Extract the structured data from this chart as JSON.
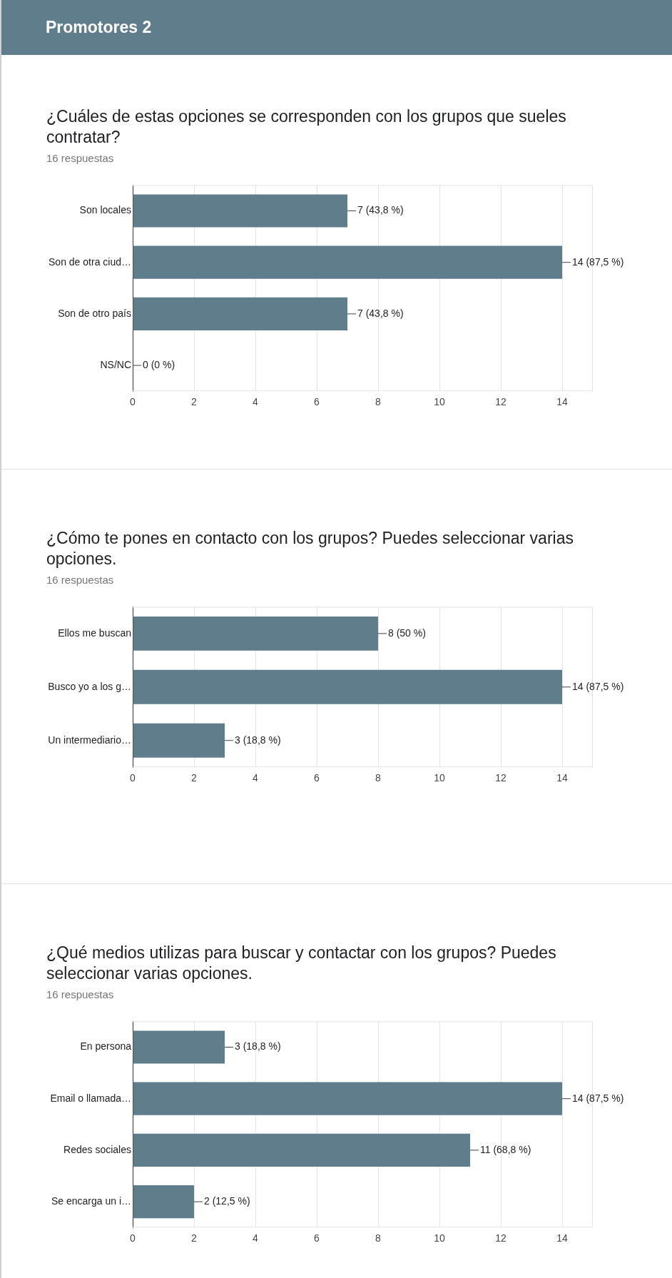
{
  "chart_data": [
    {
      "type": "bar",
      "orientation": "horizontal",
      "annotations": [
        "Promotores 2"
      ],
      "title": "¿Cuáles de estas opciones se corresponden con los grupos que sueles contratar?",
      "subtitle": "16 respuestas",
      "categories": [
        "Son locales",
        "Son de otra ciud…",
        "Son de otro país",
        "NS/NC"
      ],
      "values": [
        7,
        14,
        7,
        0
      ],
      "value_labels": [
        "7 (43,8 %)",
        "14 (87,5 %)",
        "7 (43,8 %)",
        "0 (0 %)"
      ],
      "color": "#607d8b",
      "xlim": [
        0,
        15
      ],
      "xticks": [
        0,
        2,
        4,
        6,
        8,
        10,
        12,
        14
      ],
      "grid": "x",
      "legend": false
    },
    {
      "type": "bar",
      "orientation": "horizontal",
      "title": "¿Cómo te pones en contacto con los grupos? Puedes seleccionar varias opciones.",
      "subtitle": "16 respuestas",
      "categories": [
        "Ellos me buscan",
        "Busco yo a los g…",
        "Un intermediario…"
      ],
      "values": [
        8,
        14,
        3
      ],
      "value_labels": [
        "8 (50 %)",
        "14 (87,5 %)",
        "3 (18,8 %)"
      ],
      "color": "#607d8b",
      "xlim": [
        0,
        15
      ],
      "xticks": [
        0,
        2,
        4,
        6,
        8,
        10,
        12,
        14
      ],
      "grid": "x",
      "legend": false
    },
    {
      "type": "bar",
      "orientation": "horizontal",
      "title": "¿Qué medios utilizas para buscar y contactar con los grupos? Puedes seleccionar varias opciones.",
      "subtitle": "16 respuestas",
      "categories": [
        "En persona",
        "Email o llamada…",
        "Redes sociales",
        "Se encarga un i…"
      ],
      "values": [
        3,
        14,
        11,
        2
      ],
      "value_labels": [
        "3 (18,8 %)",
        "14 (87,5 %)",
        "11 (68,8 %)",
        "2 (12,5 %)"
      ],
      "color": "#607d8b",
      "xlim": [
        0,
        15
      ],
      "xticks": [
        0,
        2,
        4,
        6,
        8,
        10,
        12,
        14
      ],
      "grid": "x",
      "legend": false
    }
  ]
}
